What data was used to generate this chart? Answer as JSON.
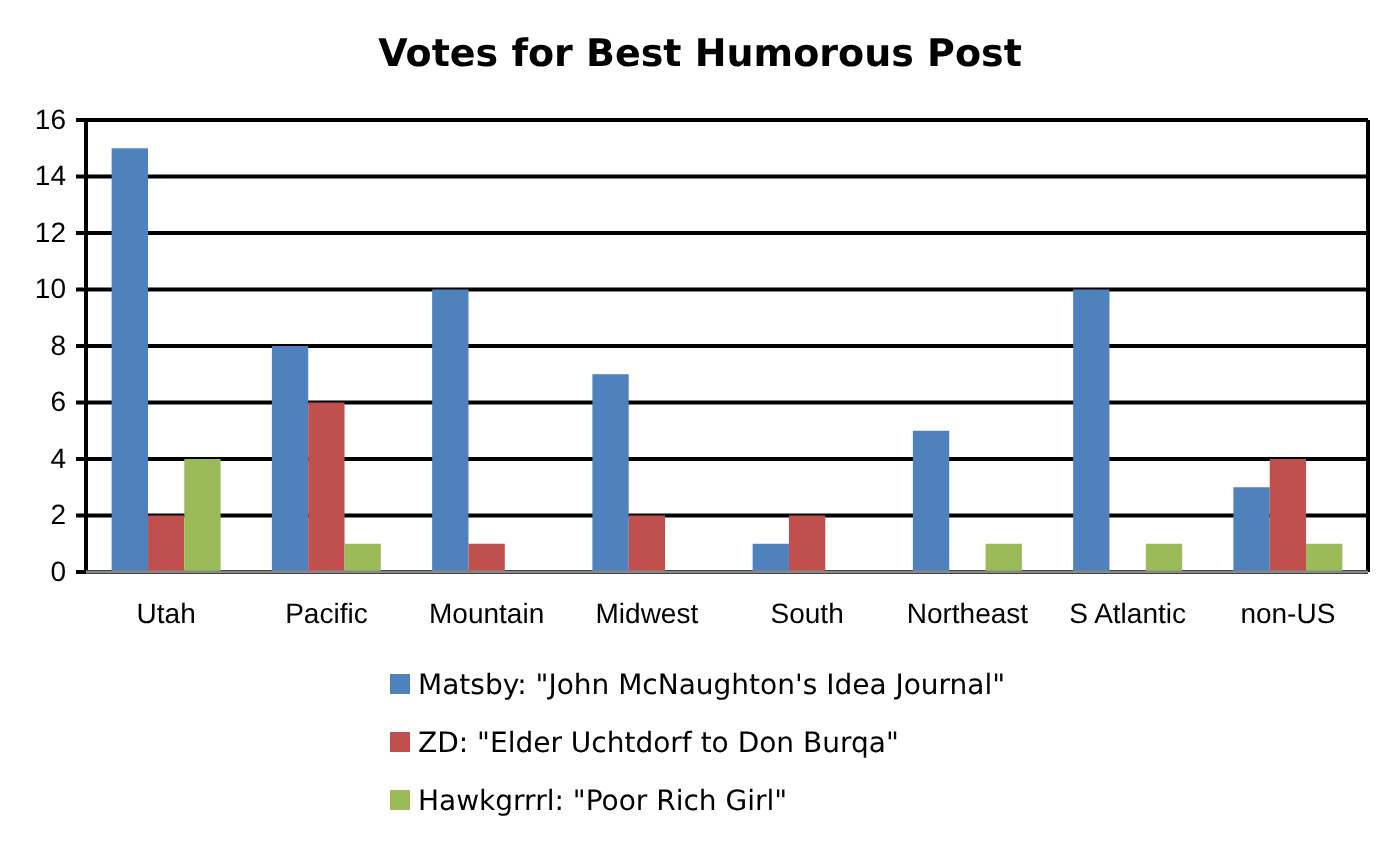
{
  "chart_data": {
    "type": "bar",
    "title": "Votes for Best Humorous Post",
    "categories": [
      "Utah",
      "Pacific",
      "Mountain",
      "Midwest",
      "South",
      "Northeast",
      "S Atlantic",
      "non-US"
    ],
    "series": [
      {
        "name": "Matsby: \"John McNaughton's Idea Journal\"",
        "color": "#4f81bd",
        "values": [
          15,
          8,
          10,
          7,
          1,
          5,
          10,
          3
        ]
      },
      {
        "name": "ZD: \"Elder Uchtdorf to Don Burqa\"",
        "color": "#c0504d",
        "values": [
          2,
          6,
          1,
          2,
          2,
          0,
          0,
          4
        ]
      },
      {
        "name": "Hawkgrrrl: \"Poor Rich Girl\"",
        "color": "#9bbb59",
        "values": [
          4,
          1,
          0,
          0,
          0,
          1,
          1,
          1
        ]
      }
    ],
    "ylim": [
      0,
      16
    ],
    "yticks": [
      0,
      2,
      4,
      6,
      8,
      10,
      12,
      14,
      16
    ],
    "grid": "y",
    "legend": "bottom"
  }
}
